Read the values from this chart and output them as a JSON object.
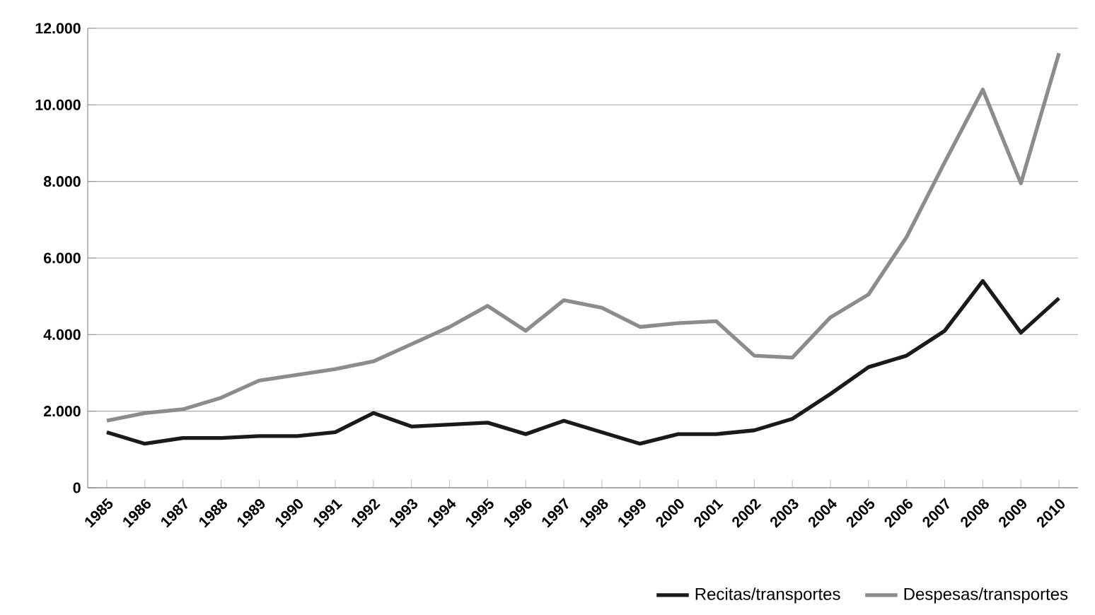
{
  "chart_data": {
    "type": "line",
    "categories": [
      "1985",
      "1986",
      "1987",
      "1988",
      "1989",
      "1990",
      "1991",
      "1992",
      "1993",
      "1994",
      "1995",
      "1996",
      "1997",
      "1998",
      "1999",
      "2000",
      "2001",
      "2002",
      "2003",
      "2004",
      "2005",
      "2006",
      "2007",
      "2008",
      "2009",
      "2010"
    ],
    "series": [
      {
        "name": "Recitas/transportes",
        "color": "#1a1a1a",
        "values": [
          1450,
          1150,
          1300,
          1300,
          1350,
          1350,
          1450,
          1950,
          1600,
          1650,
          1700,
          1400,
          1750,
          1450,
          1150,
          1400,
          1400,
          1500,
          1800,
          2450,
          3150,
          3450,
          4100,
          5400,
          4050,
          4950
        ]
      },
      {
        "name": "Despesas/transportes",
        "color": "#8c8c8c",
        "values": [
          1750,
          1950,
          2050,
          2350,
          2800,
          2950,
          3100,
          3300,
          3750,
          4200,
          4750,
          4100,
          4900,
          4700,
          4200,
          4300,
          4350,
          3450,
          3400,
          4450,
          5050,
          6550,
          8500,
          10400,
          7950,
          11350
        ]
      }
    ],
    "ylim": [
      0,
      12000
    ],
    "yticks": [
      0,
      {
        "value": 2000,
        "label": "2.000"
      },
      {
        "value": 4000,
        "label": "4.000"
      },
      {
        "value": 6000,
        "label": "6.000"
      },
      {
        "value": 8000,
        "label": "8.000"
      },
      {
        "value": 10000,
        "label": "10.000"
      },
      {
        "value": 12000,
        "label": "12.000"
      }
    ],
    "grid": "y",
    "legend": "bottom right",
    "marker": "none",
    "line_style": "solid"
  }
}
